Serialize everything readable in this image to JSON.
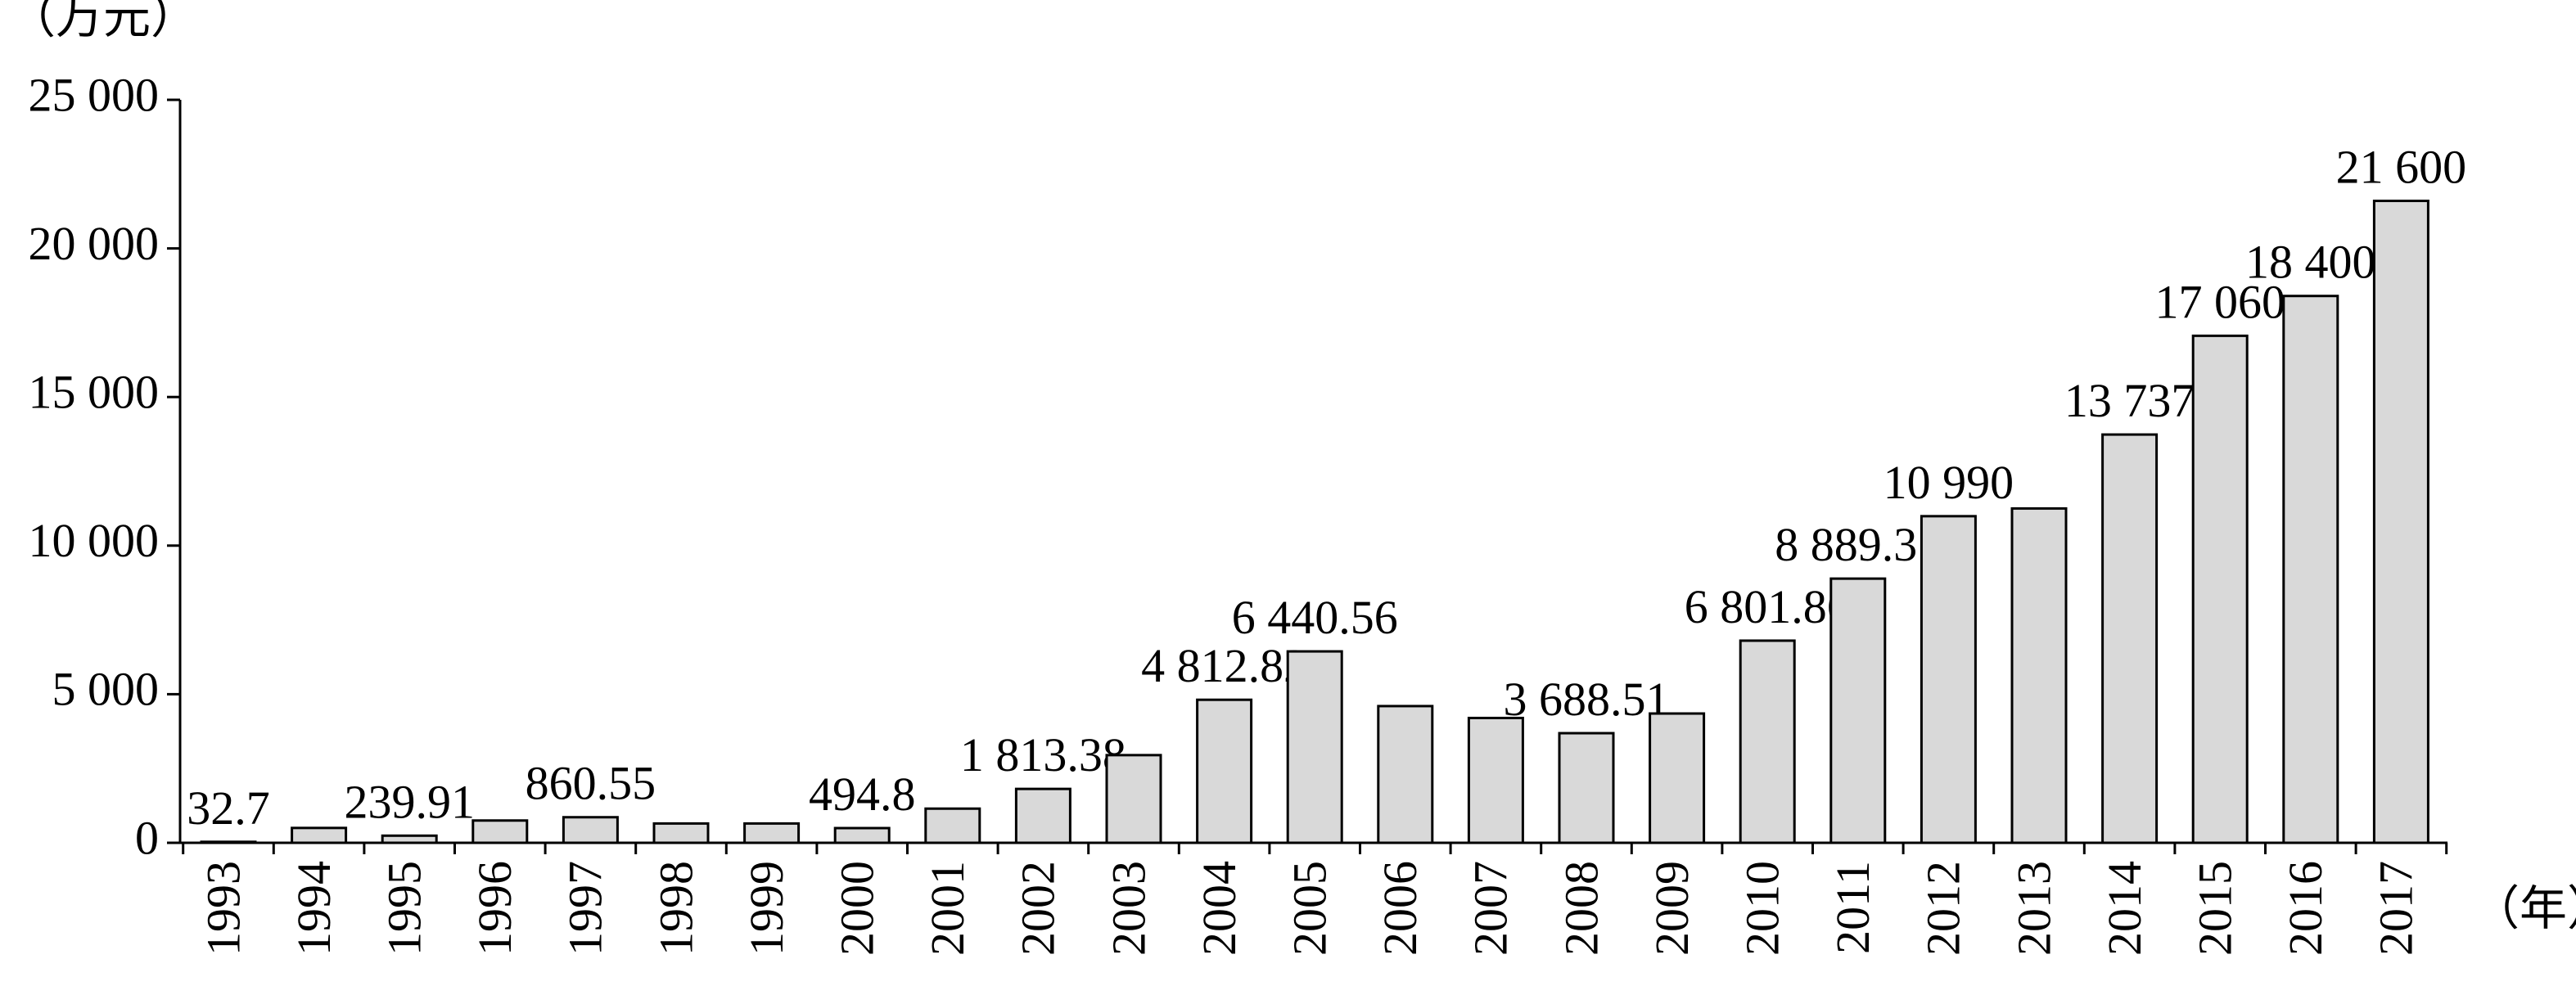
{
  "chart_data": {
    "type": "bar",
    "y_unit": "（万元）",
    "x_unit": "（年）",
    "categories": [
      "1993",
      "1994",
      "1995",
      "1996",
      "1997",
      "1998",
      "1999",
      "2000",
      "2001",
      "2002",
      "2003",
      "2004",
      "2005",
      "2006",
      "2007",
      "2008",
      "2009",
      "2010",
      "2011",
      "2012",
      "2013",
      "2014",
      "2015",
      "2016",
      "2017"
    ],
    "values": [
      32.7,
      500,
      239.91,
      750,
      860.55,
      650,
      650,
      494.8,
      1150,
      1813.38,
      2950,
      4812.82,
      6440.56,
      4600,
      4200,
      3688.51,
      4350,
      6801.86,
      8889.31,
      10990,
      11250,
      13737,
      17060,
      18400,
      21600
    ],
    "value_labels": [
      "32.7",
      null,
      "239.91",
      null,
      "860.55",
      null,
      null,
      "494.8",
      null,
      "1 813.38",
      null,
      "4 812.82",
      "6 440.56",
      null,
      null,
      "3 688.51",
      null,
      "6 801.86",
      "8 889.31",
      "10 990",
      null,
      "13 737",
      "17 060",
      "18 400",
      "21 600"
    ],
    "color": "#d9d9d9",
    "ylim": [
      0,
      25000
    ],
    "yticks": [
      0,
      {
        "value": 5000,
        "label": "5 000"
      },
      {
        "value": 10000,
        "label": "10 000"
      },
      {
        "value": 15000,
        "label": "15 000"
      },
      {
        "value": 20000,
        "label": "20 000"
      },
      {
        "value": 25000,
        "label": "25 000"
      }
    ]
  }
}
